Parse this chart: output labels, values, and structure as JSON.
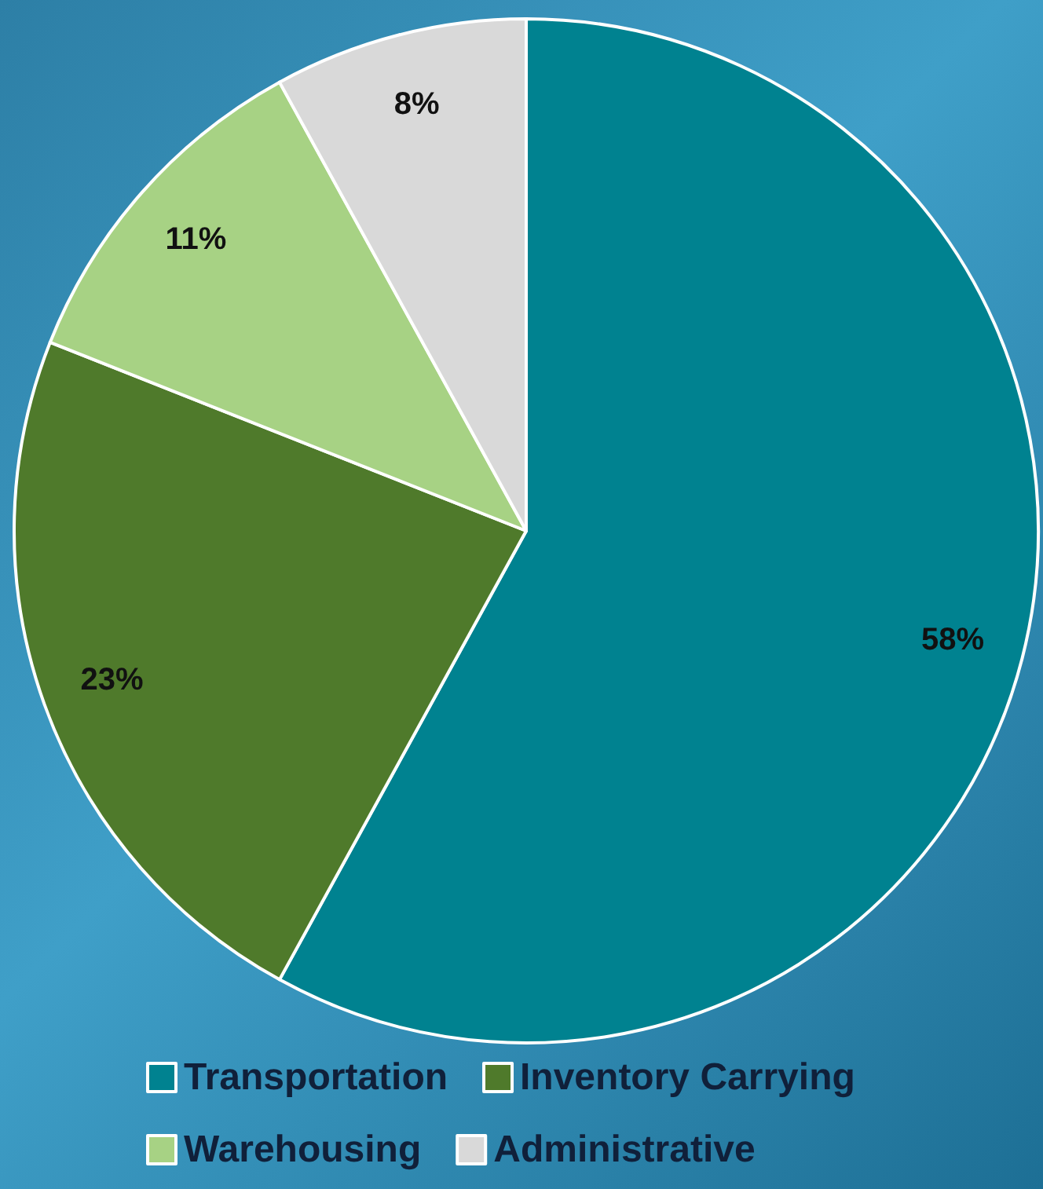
{
  "chart_data": {
    "type": "pie",
    "categories": [
      "Transportation",
      "Inventory Carrying",
      "Warehousing",
      "Administrative"
    ],
    "values": [
      58,
      23,
      11,
      8
    ],
    "colors": [
      "#008290",
      "#4f7a2b",
      "#a7d284",
      "#d9d9d9"
    ],
    "value_labels": [
      "58%",
      "23%",
      "11%",
      "8%"
    ],
    "legend": "bottom"
  }
}
